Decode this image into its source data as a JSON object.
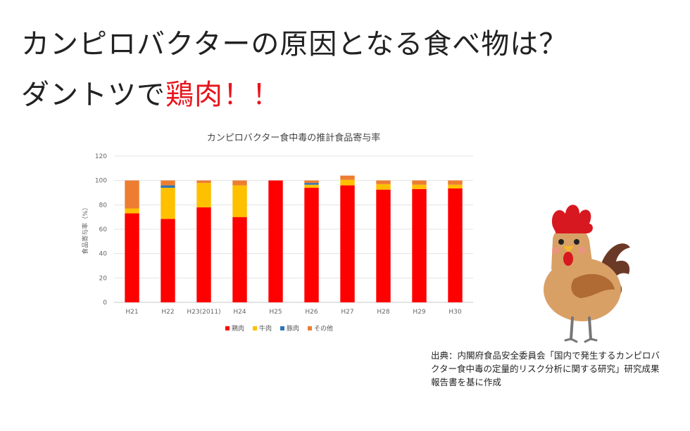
{
  "heading": {
    "line1": "カンピロバクターの原因となる食べ物は？",
    "line2_prefix": "ダントツで",
    "line2_highlight": "鶏肉",
    "line2_suffix": "！！"
  },
  "chart_data": {
    "type": "bar",
    "stacked": true,
    "title": "カンピロバクター食中毒の推計食品寄与率",
    "ylabel": "食品寄与率（%）",
    "xlabel": "",
    "ylim": [
      0,
      120
    ],
    "yticks": [
      0,
      20,
      40,
      60,
      80,
      100,
      120
    ],
    "grid": true,
    "legend_position": "bottom",
    "categories": [
      "H21",
      "H22",
      "H23(2011)",
      "H24",
      "H25",
      "H26",
      "H27",
      "H28",
      "H29",
      "H30"
    ],
    "series": [
      {
        "name": "鶏肉",
        "color": "#ff0000",
        "values": [
          73,
          68.5,
          78,
          70,
          100,
          94,
          96,
          92.5,
          93,
          93.5
        ]
      },
      {
        "name": "牛肉",
        "color": "#ffc000",
        "values": [
          4,
          25.5,
          20,
          26,
          0,
          2.5,
          4.5,
          4.5,
          3.5,
          3
        ]
      },
      {
        "name": "豚肉",
        "color": "#2e75b6",
        "values": [
          0,
          2,
          0,
          0,
          0,
          1.5,
          0,
          0,
          0,
          0
        ]
      },
      {
        "name": "その他",
        "color": "#ed7d31",
        "values": [
          23,
          4,
          2,
          4,
          0,
          2,
          3.5,
          3,
          3.5,
          3.5
        ]
      }
    ]
  },
  "source": {
    "text": "出典：内閣府食品安全委員会「国内で発生するカンピロバクター食中毒の定量的リスク分析に関する研究」研究成果報告書を基に作成"
  },
  "illustration": {
    "icon": "rooster-icon"
  }
}
